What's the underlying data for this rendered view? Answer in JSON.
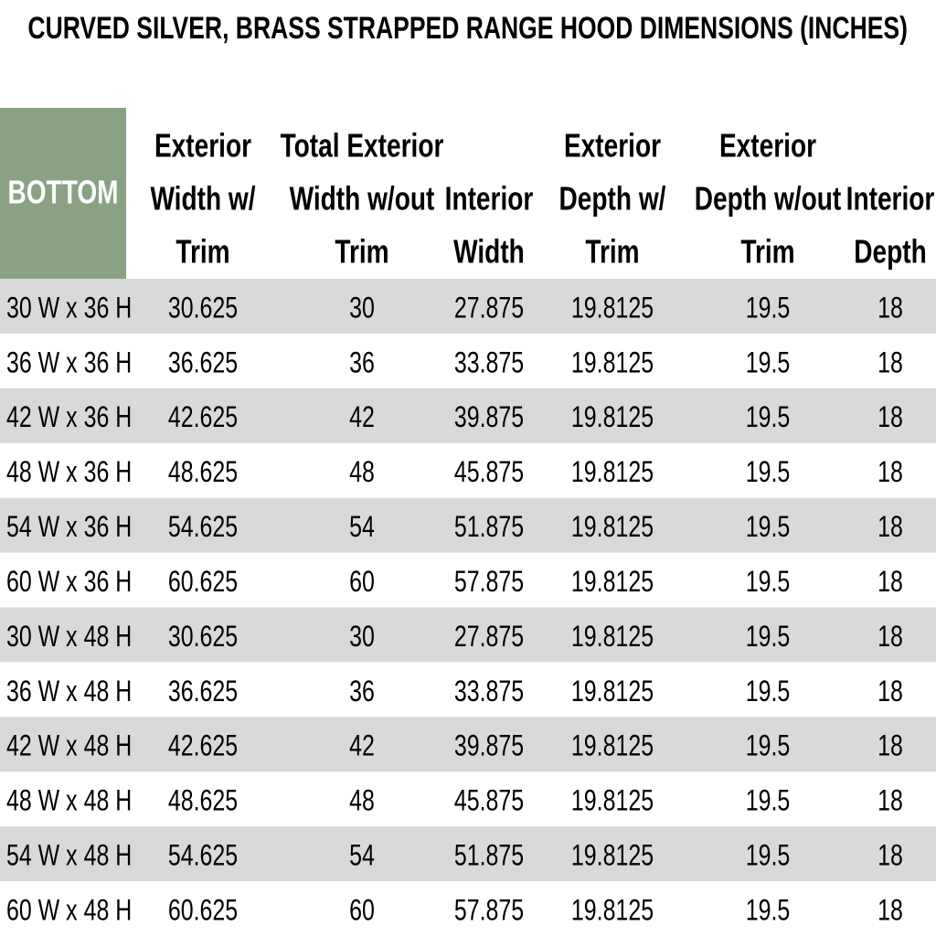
{
  "title": "CURVED SILVER, BRASS STRAPPED RANGE HOOD DIMENSIONS (INCHES)",
  "table": {
    "headers": [
      [
        "BOTTOM"
      ],
      [
        "Exterior",
        "Width w/",
        "Trim"
      ],
      [
        "Total Exterior",
        "Width w/out",
        "Trim"
      ],
      [
        "Interior",
        "Width"
      ],
      [
        "Exterior",
        "Depth w/",
        "Trim"
      ],
      [
        "Exterior",
        "Depth w/out",
        "Trim"
      ],
      [
        "Interior",
        "Depth"
      ]
    ],
    "rows": [
      [
        "30 W x 36 H",
        "30.625",
        "30",
        "27.875",
        "19.8125",
        "19.5",
        "18"
      ],
      [
        "36 W x 36 H",
        "36.625",
        "36",
        "33.875",
        "19.8125",
        "19.5",
        "18"
      ],
      [
        "42 W x 36 H",
        "42.625",
        "42",
        "39.875",
        "19.8125",
        "19.5",
        "18"
      ],
      [
        "48 W x 36 H",
        "48.625",
        "48",
        "45.875",
        "19.8125",
        "19.5",
        "18"
      ],
      [
        "54 W x 36 H",
        "54.625",
        "54",
        "51.875",
        "19.8125",
        "19.5",
        "18"
      ],
      [
        "60 W x 36 H",
        "60.625",
        "60",
        "57.875",
        "19.8125",
        "19.5",
        "18"
      ],
      [
        "30 W x 48 H",
        "30.625",
        "30",
        "27.875",
        "19.8125",
        "19.5",
        "18"
      ],
      [
        "36 W x 48 H",
        "36.625",
        "36",
        "33.875",
        "19.8125",
        "19.5",
        "18"
      ],
      [
        "42 W x 48 H",
        "42.625",
        "42",
        "39.875",
        "19.8125",
        "19.5",
        "18"
      ],
      [
        "48 W x 48 H",
        "48.625",
        "48",
        "45.875",
        "19.8125",
        "19.5",
        "18"
      ],
      [
        "54 W x 48 H",
        "54.625",
        "54",
        "51.875",
        "19.8125",
        "19.5",
        "18"
      ],
      [
        "60 W x 48 H",
        "60.625",
        "60",
        "57.875",
        "19.8125",
        "19.5",
        "18"
      ]
    ]
  }
}
